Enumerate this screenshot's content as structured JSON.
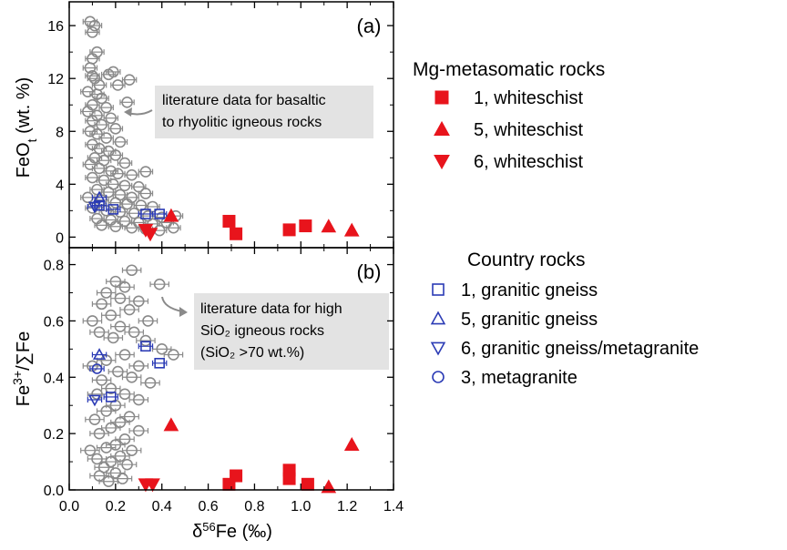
{
  "chart_data": [
    {
      "type": "scatter",
      "panel_label": "(a)",
      "xlabel": "δ⁵⁶Fe (‰)",
      "ylabel": "FeOt (wt. %)",
      "xlim": [
        0.0,
        1.4
      ],
      "ylim": [
        -0.8,
        17.8
      ],
      "yticks": [
        0,
        4,
        8,
        12,
        16
      ],
      "yminor": [
        2,
        6,
        10,
        14
      ],
      "annotation": [
        "literature data for basaltic",
        "to rhyolitic igneous rocks"
      ],
      "series": [
        {
          "name": "1, whiteschist",
          "marker": "square",
          "color": "#e8141c",
          "points": [
            [
              0.69,
              1.2
            ],
            [
              0.72,
              0.25
            ],
            [
              0.95,
              0.55
            ],
            [
              1.02,
              0.85
            ]
          ]
        },
        {
          "name": "5, whiteschist",
          "marker": "triangle-up",
          "color": "#e8141c",
          "points": [
            [
              0.44,
              1.6
            ],
            [
              1.12,
              0.8
            ],
            [
              1.22,
              0.5
            ]
          ]
        },
        {
          "name": "6, whiteschist",
          "marker": "triangle-down",
          "color": "#e8141c",
          "points": [
            [
              0.33,
              0.55
            ],
            [
              0.35,
              0.25
            ]
          ]
        },
        {
          "name": "1, granitic gneiss",
          "marker": "square-open",
          "color": "#2b3bb5",
          "points": [
            [
              0.13,
              2.4
            ],
            [
              0.19,
              2.1
            ],
            [
              0.33,
              1.75
            ],
            [
              0.39,
              1.75
            ]
          ],
          "xerr": 0.03
        },
        {
          "name": "5, granitic gneiss",
          "marker": "triangle-up-open",
          "color": "#2b3bb5",
          "points": [
            [
              0.13,
              3.0
            ]
          ],
          "xerr": 0.03
        },
        {
          "name": "6, granitic gneiss/metagranite",
          "marker": "triangle-down-open",
          "color": "#2b3bb5",
          "points": [
            [
              0.11,
              2.3
            ]
          ],
          "xerr": 0.03
        },
        {
          "name": "literature data",
          "marker": "circle-open",
          "color": "#8a8a8a",
          "points": [
            [
              0.09,
              16.3
            ],
            [
              0.1,
              15.5
            ],
            [
              0.11,
              16.0
            ],
            [
              0.1,
              13.5
            ],
            [
              0.12,
              14.0
            ],
            [
              0.09,
              12.8
            ],
            [
              0.1,
              12.2
            ],
            [
              0.11,
              12.0
            ],
            [
              0.13,
              11.5
            ],
            [
              0.08,
              11.0
            ],
            [
              0.12,
              10.8
            ],
            [
              0.14,
              10.5
            ],
            [
              0.1,
              10.0
            ],
            [
              0.16,
              9.8
            ],
            [
              0.08,
              9.5
            ],
            [
              0.12,
              9.2
            ],
            [
              0.18,
              9.0
            ],
            [
              0.1,
              8.8
            ],
            [
              0.14,
              8.5
            ],
            [
              0.2,
              8.2
            ],
            [
              0.09,
              8.0
            ],
            [
              0.12,
              7.8
            ],
            [
              0.16,
              7.5
            ],
            [
              0.22,
              7.2
            ],
            [
              0.1,
              7.0
            ],
            [
              0.13,
              6.7
            ],
            [
              0.17,
              6.5
            ],
            [
              0.2,
              6.2
            ],
            [
              0.11,
              6.0
            ],
            [
              0.15,
              5.8
            ],
            [
              0.24,
              5.6
            ],
            [
              0.09,
              5.5
            ],
            [
              0.13,
              5.2
            ],
            [
              0.18,
              5.0
            ],
            [
              0.21,
              4.8
            ],
            [
              0.27,
              4.7
            ],
            [
              0.33,
              4.95
            ],
            [
              0.1,
              4.5
            ],
            [
              0.15,
              4.3
            ],
            [
              0.19,
              4.0
            ],
            [
              0.24,
              3.9
            ],
            [
              0.3,
              3.8
            ],
            [
              0.12,
              3.6
            ],
            [
              0.17,
              3.4
            ],
            [
              0.22,
              3.2
            ],
            [
              0.27,
              3.0
            ],
            [
              0.33,
              3.3
            ],
            [
              0.08,
              3.0
            ],
            [
              0.14,
              2.8
            ],
            [
              0.2,
              2.6
            ],
            [
              0.25,
              2.5
            ],
            [
              0.31,
              2.4
            ],
            [
              0.36,
              2.3
            ],
            [
              0.1,
              2.2
            ],
            [
              0.16,
              2.0
            ],
            [
              0.22,
              1.9
            ],
            [
              0.28,
              1.8
            ],
            [
              0.34,
              1.6
            ],
            [
              0.4,
              1.5
            ],
            [
              0.46,
              1.6
            ],
            [
              0.12,
              1.4
            ],
            [
              0.18,
              1.3
            ],
            [
              0.24,
              1.2
            ],
            [
              0.3,
              1.1
            ],
            [
              0.36,
              1.0
            ],
            [
              0.42,
              1.1
            ],
            [
              0.14,
              0.9
            ],
            [
              0.2,
              0.8
            ],
            [
              0.27,
              0.7
            ],
            [
              0.33,
              0.6
            ],
            [
              0.39,
              0.5
            ],
            [
              0.45,
              0.7
            ],
            [
              0.26,
              11.9
            ],
            [
              0.21,
              11.5
            ],
            [
              0.17,
              12.3
            ],
            [
              0.25,
              10.2
            ],
            [
              0.19,
              12.5
            ]
          ],
          "xerr": 0.03
        }
      ]
    },
    {
      "type": "scatter",
      "panel_label": "(b)",
      "xlabel": "δ⁵⁶Fe (‰)",
      "ylabel": "Fe³⁺/∑Fe",
      "xlim": [
        0.0,
        1.4
      ],
      "ylim": [
        0.0,
        0.86
      ],
      "xticks": [
        0.0,
        0.2,
        0.4,
        0.6,
        0.8,
        1.0,
        1.2,
        1.4
      ],
      "yticks": [
        0.0,
        0.2,
        0.4,
        0.6,
        0.8
      ],
      "yminor": [
        0.1,
        0.3,
        0.5,
        0.7
      ],
      "annotation": [
        "literature data for high",
        "SiO₂ igneous rocks",
        "(SiO₂ >70 wt.%)"
      ],
      "series": [
        {
          "name": "1, whiteschist",
          "marker": "square",
          "color": "#e8141c",
          "points": [
            [
              0.69,
              0.02
            ],
            [
              0.72,
              0.05
            ],
            [
              0.95,
              0.07
            ],
            [
              0.95,
              0.04
            ],
            [
              1.03,
              0.02
            ]
          ]
        },
        {
          "name": "5, whiteschist",
          "marker": "triangle-up",
          "color": "#e8141c",
          "points": [
            [
              0.44,
              0.23
            ],
            [
              1.12,
              0.01
            ],
            [
              1.22,
              0.16
            ]
          ]
        },
        {
          "name": "6, whiteschist",
          "marker": "triangle-down",
          "color": "#e8141c",
          "points": [
            [
              0.33,
              0.02
            ],
            [
              0.36,
              0.02
            ]
          ]
        },
        {
          "name": "1, granitic gneiss",
          "marker": "square-open",
          "color": "#2b3bb5",
          "points": [
            [
              0.18,
              0.33
            ],
            [
              0.33,
              0.51
            ],
            [
              0.39,
              0.45
            ]
          ],
          "xerr": 0.03
        },
        {
          "name": "5, granitic gneiss",
          "marker": "triangle-up-open",
          "color": "#2b3bb5",
          "points": [
            [
              0.13,
              0.48
            ]
          ],
          "xerr": 0.03
        },
        {
          "name": "6, granitic gneiss/metagranite",
          "marker": "triangle-down-open",
          "color": "#2b3bb5",
          "points": [
            [
              0.11,
              0.32
            ]
          ],
          "xerr": 0.03
        },
        {
          "name": "3, metagranite",
          "marker": "circle-open",
          "color": "#2b3bb5",
          "points": [
            [
              0.12,
              0.43
            ]
          ],
          "xerr": 0.03
        },
        {
          "name": "literature data",
          "marker": "circle-open",
          "color": "#8a8a8a",
          "points": [
            [
              0.27,
              0.78
            ],
            [
              0.39,
              0.73
            ],
            [
              0.2,
              0.74
            ],
            [
              0.24,
              0.72
            ],
            [
              0.16,
              0.7
            ],
            [
              0.22,
              0.68
            ],
            [
              0.3,
              0.67
            ],
            [
              0.14,
              0.66
            ],
            [
              0.26,
              0.64
            ],
            [
              0.18,
              0.62
            ],
            [
              0.34,
              0.6
            ],
            [
              0.1,
              0.6
            ],
            [
              0.22,
              0.58
            ],
            [
              0.28,
              0.56
            ],
            [
              0.13,
              0.56
            ],
            [
              0.19,
              0.54
            ],
            [
              0.33,
              0.53
            ],
            [
              0.4,
              0.5
            ],
            [
              0.45,
              0.48
            ],
            [
              0.24,
              0.48
            ],
            [
              0.16,
              0.46
            ],
            [
              0.3,
              0.44
            ],
            [
              0.1,
              0.44
            ],
            [
              0.21,
              0.42
            ],
            [
              0.27,
              0.4
            ],
            [
              0.14,
              0.39
            ],
            [
              0.35,
              0.38
            ],
            [
              0.18,
              0.36
            ],
            [
              0.24,
              0.34
            ],
            [
              0.12,
              0.34
            ],
            [
              0.3,
              0.32
            ],
            [
              0.2,
              0.3
            ],
            [
              0.16,
              0.28
            ],
            [
              0.26,
              0.26
            ],
            [
              0.11,
              0.25
            ],
            [
              0.22,
              0.24
            ],
            [
              0.18,
              0.22
            ],
            [
              0.3,
              0.21
            ],
            [
              0.13,
              0.2
            ],
            [
              0.24,
              0.18
            ],
            [
              0.2,
              0.16
            ],
            [
              0.16,
              0.15
            ],
            [
              0.09,
              0.14
            ],
            [
              0.27,
              0.14
            ],
            [
              0.22,
              0.12
            ],
            [
              0.12,
              0.11
            ],
            [
              0.18,
              0.1
            ],
            [
              0.25,
              0.09
            ],
            [
              0.15,
              0.08
            ],
            [
              0.2,
              0.06
            ],
            [
              0.13,
              0.05
            ],
            [
              0.23,
              0.04
            ],
            [
              0.17,
              0.03
            ]
          ],
          "xerr": 0.04
        }
      ]
    }
  ],
  "legend": {
    "mg_title": "Mg-metasomatic rocks",
    "mg_items": [
      {
        "label": "1, whiteschist",
        "marker": "square",
        "color": "#e8141c"
      },
      {
        "label": "5, whiteschist",
        "marker": "triangle-up",
        "color": "#e8141c"
      },
      {
        "label": "6, whiteschist",
        "marker": "triangle-down",
        "color": "#e8141c"
      }
    ],
    "country_title": "Country rocks",
    "country_items": [
      {
        "label": "1, granitic gneiss",
        "marker": "square-open",
        "color": "#2b3bb5"
      },
      {
        "label": "5, granitic gneiss",
        "marker": "triangle-up-open",
        "color": "#2b3bb5"
      },
      {
        "label": "6, granitic gneiss/metagranite",
        "marker": "triangle-down-open",
        "color": "#2b3bb5"
      },
      {
        "label": "3, metagranite",
        "marker": "circle-open",
        "color": "#2b3bb5"
      }
    ]
  }
}
